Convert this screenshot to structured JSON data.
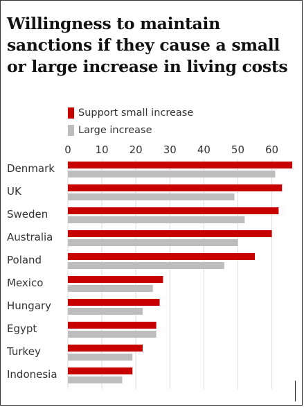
{
  "title": "Willingness to maintain sanctions if they cause a small or large increase in living costs",
  "legend": [
    {
      "label": "Support small increase",
      "color": "#c70000"
    },
    {
      "label": "Large increase",
      "color": "#bdbdbd"
    }
  ],
  "chart_data": {
    "type": "bar",
    "orientation": "horizontal",
    "title": "Willingness to maintain sanctions if they cause a small or large increase in living costs",
    "xlabel": "",
    "ylabel": "",
    "xlim": [
      0,
      66
    ],
    "x_ticks": [
      0,
      10,
      20,
      30,
      40,
      50,
      60
    ],
    "grid": true,
    "legend_position": "top-left",
    "categories": [
      "Denmark",
      "UK",
      "Sweden",
      "Australia",
      "Poland",
      "Mexico",
      "Hungary",
      "Egypt",
      "Turkey",
      "Indonesia"
    ],
    "series": [
      {
        "name": "Support small increase",
        "color": "#c70000",
        "values": [
          66,
          63,
          62,
          60,
          55,
          28,
          27,
          26,
          22,
          19
        ]
      },
      {
        "name": "Large increase",
        "color": "#bdbdbd",
        "values": [
          61,
          49,
          52,
          50,
          46,
          25,
          22,
          26,
          19,
          16
        ]
      }
    ]
  }
}
